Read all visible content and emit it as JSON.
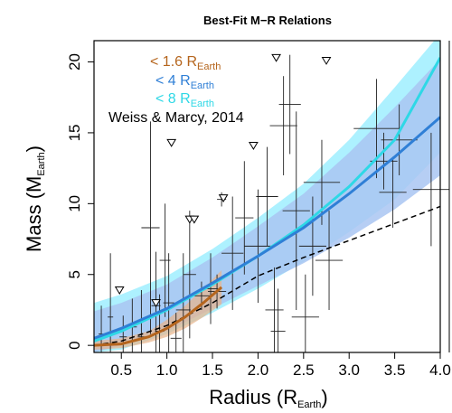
{
  "chart_data": {
    "type": "scatter",
    "title": "Best-Fit M−R Relations",
    "xlabel": {
      "main": "Radius (R",
      "sub": "Earth",
      "end": ")"
    },
    "ylabel": {
      "main": "Mass (M",
      "sub": "Earth",
      "end": ")"
    },
    "xlim": [
      0.2,
      4.0
    ],
    "ylim": [
      -0.5,
      21.5
    ],
    "xticks": [
      0.5,
      1.0,
      1.5,
      2.0,
      2.5,
      3.0,
      3.5,
      4.0
    ],
    "xtick_labels": [
      "0.5",
      "1.0",
      "1.5",
      "2.0",
      "2.5",
      "3.0",
      "3.5",
      "4.0"
    ],
    "yticks": [
      0,
      5,
      10,
      15,
      20
    ],
    "ytick_labels": [
      "0",
      "5",
      "10",
      "15",
      "20"
    ],
    "legend": [
      {
        "prefix": "< 1.6 R",
        "sub": "Earth",
        "color": "#b5651d"
      },
      {
        "prefix": "< 4 R",
        "sub": "Earth",
        "color": "#2f7fd6"
      },
      {
        "prefix": "< 8 R",
        "sub": "Earth",
        "color": "#2ed8e6"
      },
      {
        "text": "Weiss & Marcy, 2014",
        "color": "#000000"
      }
    ],
    "colors": {
      "band_8": "#9feeff",
      "band_4": "#a9c5f2",
      "line_8": "#2ed8e6",
      "line_4": "#2f7fd6",
      "line_16": "#b5651d",
      "weiss_marcy": "#000000",
      "band_16": "#e8b48a"
    },
    "fit_lt4": {
      "x": [
        0.2,
        0.5,
        1.0,
        1.5,
        2.0,
        2.5,
        3.0,
        3.5,
        4.0
      ],
      "y": [
        0.5,
        1.2,
        2.6,
        4.4,
        6.3,
        8.3,
        10.7,
        13.3,
        16.1
      ],
      "band_lower": [
        -0.5,
        0.0,
        1.0,
        2.6,
        4.2,
        5.8,
        7.6,
        9.6,
        12.0
      ],
      "band_upper": [
        2.4,
        3.0,
        4.3,
        6.2,
        8.4,
        10.7,
        13.6,
        16.8,
        20.2
      ]
    },
    "fit_lt8": {
      "x": [
        0.2,
        0.5,
        1.0,
        1.5,
        2.0,
        2.5,
        3.0,
        3.5,
        4.0
      ],
      "y": [
        0.3,
        1.0,
        2.5,
        4.3,
        6.3,
        8.5,
        11.2,
        14.5,
        20.3
      ],
      "band_lower": [
        -0.5,
        -0.3,
        0.8,
        2.3,
        4.0,
        5.9,
        8.0,
        10.3,
        13.6
      ],
      "band_upper": [
        3.0,
        3.6,
        4.9,
        6.8,
        9.0,
        11.4,
        14.5,
        18.2,
        22.0
      ]
    },
    "fit_lt16": {
      "x": [
        0.2,
        0.5,
        0.8,
        1.0,
        1.2,
        1.4,
        1.6
      ],
      "y": [
        0.0,
        0.1,
        0.6,
        1.2,
        2.0,
        3.0,
        4.1
      ],
      "band_lower": [
        -0.3,
        -0.2,
        0.2,
        0.6,
        1.2,
        2.0,
        2.9
      ],
      "band_upper": [
        0.3,
        0.5,
        1.0,
        1.8,
        2.8,
        4.0,
        5.3
      ]
    },
    "weiss_marcy": {
      "x": [
        0.2,
        0.5,
        1.0,
        1.5,
        2.0,
        2.5,
        3.0,
        3.5,
        4.0
      ],
      "y": [
        0.0,
        0.3,
        1.4,
        3.0,
        4.9,
        6.2,
        7.4,
        8.6,
        9.8
      ]
    },
    "measurements": [
      {
        "x": 0.28,
        "y": 0.8,
        "xerr": 0.03,
        "yerr": 2.0
      },
      {
        "x": 0.38,
        "y": 2.0,
        "xerr": 0.03,
        "yerr": 4.5
      },
      {
        "x": 0.52,
        "y": 0.6,
        "xerr": 0.04,
        "yerr": 1.5
      },
      {
        "x": 0.62,
        "y": 1.3,
        "xerr": 0.05,
        "yerr": 2.0
      },
      {
        "x": 0.72,
        "y": 0.6,
        "xerr": 0.04,
        "yerr": 3.3
      },
      {
        "x": 0.82,
        "y": 8.3,
        "xerr": 0.1,
        "yerr": 7.5
      },
      {
        "x": 0.88,
        "y": 2.8,
        "xerr": 0.05,
        "yerr": 3.8
      },
      {
        "x": 0.92,
        "y": 1.0,
        "xerr": 0.05,
        "yerr": 2.6
      },
      {
        "x": 0.98,
        "y": 6.0,
        "xerr": 0.06,
        "yerr": 4.0
      },
      {
        "x": 1.02,
        "y": 3.0,
        "xerr": 0.06,
        "yerr": 3.5
      },
      {
        "x": 1.1,
        "y": 0.5,
        "xerr": 0.06,
        "yerr": 1.8
      },
      {
        "x": 1.18,
        "y": 2.5,
        "xerr": 0.08,
        "yerr": 4.0
      },
      {
        "x": 1.25,
        "y": 5.0,
        "xerr": 0.07,
        "yerr": 4.5
      },
      {
        "x": 1.38,
        "y": 3.5,
        "xerr": 0.1,
        "yerr": 1.0
      },
      {
        "x": 1.48,
        "y": 4.0,
        "xerr": 0.08,
        "yerr": 2.5
      },
      {
        "x": 1.55,
        "y": 3.8,
        "xerr": 0.1,
        "yerr": 1.2
      },
      {
        "x": 1.6,
        "y": 10.3,
        "xerr": 0.05,
        "yerr": 0.5
      },
      {
        "x": 1.72,
        "y": 6.5,
        "xerr": 0.12,
        "yerr": 4.0
      },
      {
        "x": 1.85,
        "y": 9.0,
        "xerr": 0.1,
        "yerr": 4.0
      },
      {
        "x": 2.0,
        "y": 7.0,
        "xerr": 0.15,
        "yerr": 4.0
      },
      {
        "x": 2.1,
        "y": 10.5,
        "xerr": 0.12,
        "yerr": 3.5
      },
      {
        "x": 2.18,
        "y": 2.5,
        "xerr": 0.1,
        "yerr": 3.0
      },
      {
        "x": 2.22,
        "y": 1.0,
        "xerr": 0.08,
        "yerr": 3.0
      },
      {
        "x": 2.28,
        "y": 15.5,
        "xerr": 0.15,
        "yerr": 3.5
      },
      {
        "x": 2.35,
        "y": 17.0,
        "xerr": 0.12,
        "yerr": 3.5
      },
      {
        "x": 2.42,
        "y": 9.5,
        "xerr": 0.15,
        "yerr": 7.0
      },
      {
        "x": 2.52,
        "y": 2.0,
        "xerr": 0.15,
        "yerr": 3.0
      },
      {
        "x": 2.6,
        "y": 7.0,
        "xerr": 0.15,
        "yerr": 3.5
      },
      {
        "x": 2.7,
        "y": 11.5,
        "xerr": 0.2,
        "yerr": 3.0
      },
      {
        "x": 2.78,
        "y": 6.0,
        "xerr": 0.15,
        "yerr": 3.5
      },
      {
        "x": 3.3,
        "y": 15.3,
        "xerr": 0.25,
        "yerr": 3.5
      },
      {
        "x": 3.38,
        "y": 13.0,
        "xerr": 0.15,
        "yerr": 2.0
      },
      {
        "x": 3.48,
        "y": 10.8,
        "xerr": 0.15,
        "yerr": 2.5
      },
      {
        "x": 3.55,
        "y": 14.5,
        "xerr": 0.2,
        "yerr": 2.5
      },
      {
        "x": 3.9,
        "y": 11.0,
        "xerr": 0.2,
        "yerr": 4.0
      }
    ],
    "upper_limits": [
      {
        "x": 0.48,
        "y": 3.9
      },
      {
        "x": 0.88,
        "y": 3.0
      },
      {
        "x": 1.05,
        "y": 14.3
      },
      {
        "x": 1.25,
        "y": 8.9
      },
      {
        "x": 1.3,
        "y": 8.9
      },
      {
        "x": 1.62,
        "y": 10.4
      },
      {
        "x": 1.95,
        "y": 14.1
      },
      {
        "x": 2.2,
        "y": 20.3
      },
      {
        "x": 2.75,
        "y": 20.1
      }
    ]
  }
}
